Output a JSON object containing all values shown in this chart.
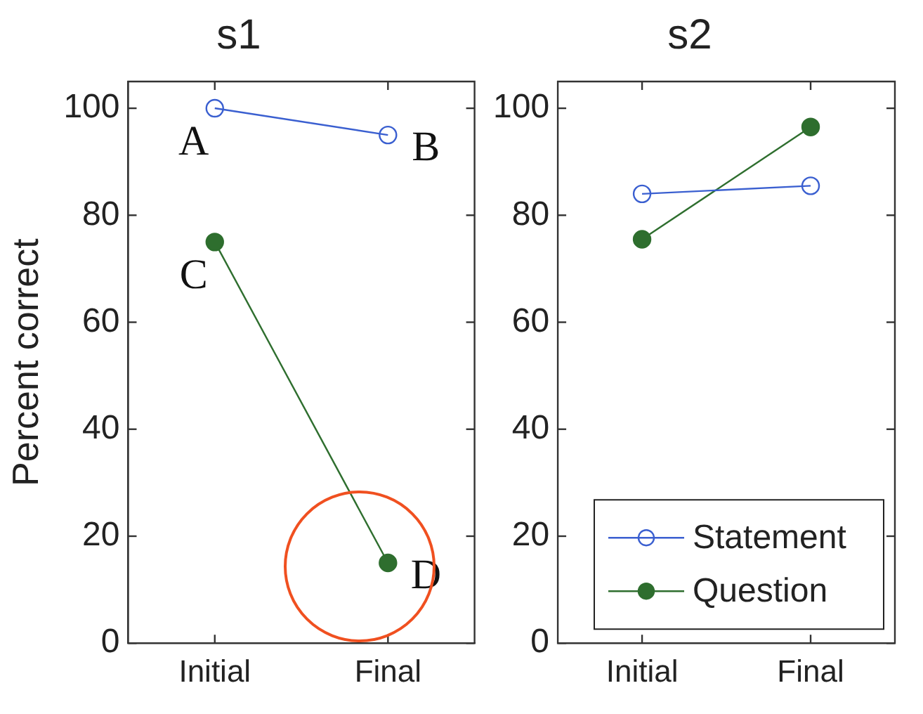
{
  "chart_data": [
    {
      "type": "line",
      "title": "s1",
      "ylabel": "Percent correct",
      "categories": [
        "Initial",
        "Final"
      ],
      "ylim": [
        0,
        105
      ],
      "yticks": [
        0,
        20,
        40,
        60,
        80,
        100
      ],
      "grid": false,
      "legend": false,
      "marker": "circle",
      "series": [
        {
          "color": "#3a5fd0",
          "values": [
            100,
            95
          ]
        },
        {
          "color": "#2e6e2e",
          "values": [
            75,
            15
          ]
        }
      ],
      "annotations": [
        {
          "text": "A",
          "x": "Initial",
          "y": 100
        },
        {
          "text": "B",
          "x": "Final",
          "y": 95
        },
        {
          "text": "C",
          "x": "Initial",
          "y": 75
        },
        {
          "text": "D",
          "x": "Final",
          "y": 15
        }
      ]
    },
    {
      "type": "line",
      "title": "s2",
      "categories": [
        "Initial",
        "Final"
      ],
      "ylim": [
        0,
        105
      ],
      "yticks": [
        0,
        20,
        40,
        60,
        80,
        100
      ],
      "grid": false,
      "legend": "bottom right",
      "marker": "circle",
      "series": [
        {
          "name": "Statement",
          "color": "#3a5fd0",
          "values": [
            84,
            85.5
          ]
        },
        {
          "name": "Question",
          "color": "#2e6e2e",
          "values": [
            75.5,
            96.5
          ]
        }
      ]
    }
  ]
}
